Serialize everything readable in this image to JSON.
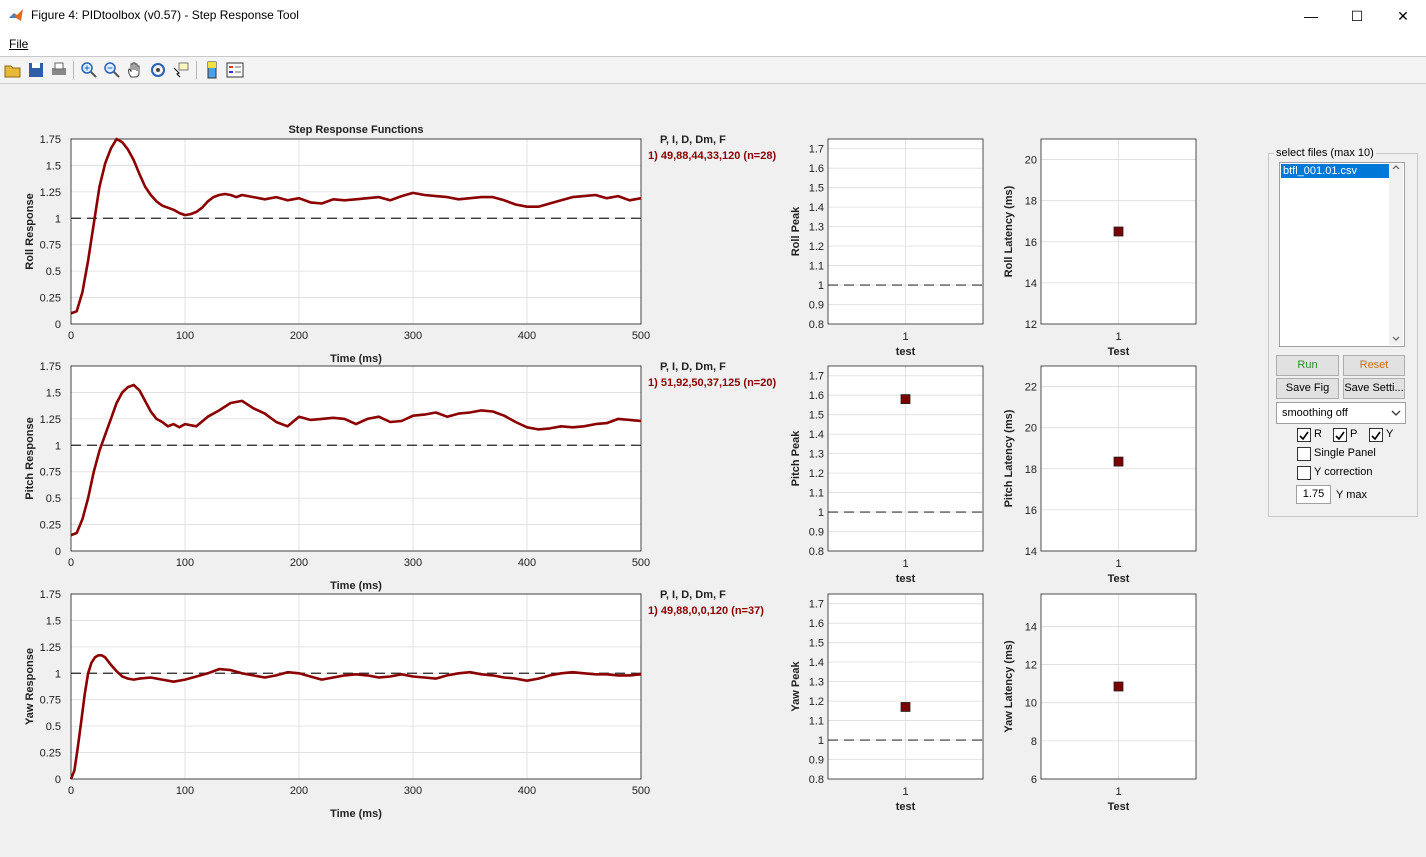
{
  "window": {
    "title": "Figure 4: PIDtoolbox (v0.57) - Step Response Tool",
    "minimize": "—",
    "maximize": "☐",
    "close": "✕"
  },
  "menu": {
    "file": "File"
  },
  "toolbar_icons": [
    "open-icon",
    "save-icon",
    "print-icon",
    "zoom-in-icon",
    "zoom-out-icon",
    "pan-icon",
    "rotate-icon",
    "data-cursor-icon",
    "colorbar-icon",
    "legend-icon"
  ],
  "chart_data": [
    {
      "type": "line",
      "title": "Step Response Functions",
      "xlabel": "Time (ms)",
      "ylabel": "Roll Response",
      "xlim": [
        0,
        500
      ],
      "ylim": [
        0,
        1.75
      ],
      "xticks": [
        0,
        100,
        200,
        300,
        400,
        500
      ],
      "yticks": [
        0,
        0.25,
        0.5,
        0.75,
        1,
        1.25,
        1.5,
        1.75
      ],
      "yticklabels": [
        "0",
        "0.25",
        "0.5",
        "0.75",
        "1",
        "1.25",
        "1.5",
        "1.75"
      ],
      "reference_line": 1,
      "grid": true,
      "color": "#8b0000",
      "x": [
        0,
        5,
        10,
        15,
        20,
        25,
        30,
        35,
        40,
        45,
        50,
        55,
        60,
        65,
        70,
        75,
        80,
        85,
        90,
        95,
        100,
        105,
        110,
        115,
        120,
        125,
        130,
        135,
        140,
        145,
        150,
        160,
        170,
        180,
        190,
        200,
        210,
        220,
        230,
        240,
        250,
        260,
        270,
        280,
        290,
        300,
        310,
        320,
        330,
        340,
        350,
        360,
        370,
        380,
        390,
        400,
        410,
        420,
        430,
        440,
        450,
        460,
        470,
        480,
        490,
        500
      ],
      "y": [
        0.1,
        0.12,
        0.3,
        0.6,
        0.95,
        1.3,
        1.52,
        1.66,
        1.75,
        1.72,
        1.65,
        1.55,
        1.42,
        1.3,
        1.22,
        1.16,
        1.12,
        1.1,
        1.08,
        1.05,
        1.03,
        1.04,
        1.06,
        1.1,
        1.16,
        1.2,
        1.22,
        1.23,
        1.22,
        1.2,
        1.22,
        1.2,
        1.18,
        1.2,
        1.17,
        1.19,
        1.15,
        1.14,
        1.18,
        1.17,
        1.18,
        1.19,
        1.2,
        1.17,
        1.21,
        1.24,
        1.22,
        1.21,
        1.2,
        1.18,
        1.19,
        1.2,
        1.2,
        1.17,
        1.13,
        1.11,
        1.11,
        1.14,
        1.17,
        1.2,
        1.21,
        1.22,
        1.19,
        1.21,
        1.17,
        1.19
      ],
      "params_header": "P, I, D, Dm, F",
      "params": "1) 49,88,44,33,120  (n=28)"
    },
    {
      "type": "line",
      "title": "",
      "xlabel": "Time (ms)",
      "ylabel": "Pitch Response",
      "xlim": [
        0,
        500
      ],
      "ylim": [
        0,
        1.75
      ],
      "xticks": [
        0,
        100,
        200,
        300,
        400,
        500
      ],
      "yticks": [
        0,
        0.25,
        0.5,
        0.75,
        1,
        1.25,
        1.5,
        1.75
      ],
      "yticklabels": [
        "0",
        "0.25",
        "0.5",
        "0.75",
        "1",
        "1.25",
        "1.5",
        "1.75"
      ],
      "reference_line": 1,
      "grid": true,
      "color": "#8b0000",
      "x": [
        0,
        5,
        10,
        15,
        20,
        25,
        30,
        35,
        40,
        45,
        50,
        55,
        60,
        65,
        70,
        75,
        80,
        85,
        90,
        95,
        100,
        110,
        120,
        130,
        140,
        150,
        160,
        170,
        180,
        190,
        200,
        210,
        220,
        230,
        240,
        250,
        260,
        270,
        280,
        290,
        300,
        310,
        320,
        330,
        340,
        350,
        360,
        370,
        380,
        390,
        400,
        410,
        420,
        430,
        440,
        450,
        460,
        470,
        480,
        490,
        500
      ],
      "y": [
        0.15,
        0.17,
        0.3,
        0.5,
        0.75,
        0.95,
        1.1,
        1.25,
        1.4,
        1.5,
        1.55,
        1.57,
        1.52,
        1.42,
        1.32,
        1.25,
        1.22,
        1.18,
        1.2,
        1.17,
        1.2,
        1.18,
        1.27,
        1.33,
        1.4,
        1.42,
        1.35,
        1.3,
        1.22,
        1.18,
        1.27,
        1.24,
        1.25,
        1.26,
        1.25,
        1.2,
        1.25,
        1.27,
        1.22,
        1.23,
        1.28,
        1.29,
        1.31,
        1.27,
        1.3,
        1.31,
        1.33,
        1.32,
        1.28,
        1.22,
        1.17,
        1.15,
        1.16,
        1.18,
        1.17,
        1.18,
        1.2,
        1.21,
        1.25,
        1.24,
        1.23
      ],
      "params_header": "P, I, D, Dm, F",
      "params": "1) 51,92,50,37,125  (n=20)"
    },
    {
      "type": "line",
      "title": "",
      "xlabel": "Time (ms)",
      "ylabel": "Yaw Response",
      "xlim": [
        0,
        500
      ],
      "ylim": [
        0,
        1.75
      ],
      "xticks": [
        0,
        100,
        200,
        300,
        400,
        500
      ],
      "yticks": [
        0,
        0.25,
        0.5,
        0.75,
        1,
        1.25,
        1.5,
        1.75
      ],
      "yticklabels": [
        "0",
        "0.25",
        "0.5",
        "0.75",
        "1",
        "1.25",
        "1.5",
        "1.75"
      ],
      "reference_line": 1,
      "grid": true,
      "color": "#8b0000",
      "x": [
        0,
        3,
        6,
        9,
        12,
        15,
        18,
        21,
        24,
        27,
        30,
        35,
        40,
        45,
        50,
        55,
        60,
        70,
        80,
        90,
        100,
        110,
        120,
        130,
        140,
        150,
        160,
        170,
        180,
        190,
        200,
        210,
        220,
        230,
        240,
        250,
        260,
        270,
        280,
        290,
        300,
        310,
        320,
        330,
        340,
        350,
        360,
        370,
        380,
        390,
        400,
        410,
        420,
        430,
        440,
        450,
        460,
        470,
        480,
        490,
        500
      ],
      "y": [
        0,
        0.08,
        0.3,
        0.55,
        0.8,
        1.0,
        1.1,
        1.15,
        1.17,
        1.17,
        1.15,
        1.08,
        1.02,
        0.97,
        0.95,
        0.94,
        0.95,
        0.96,
        0.94,
        0.92,
        0.94,
        0.97,
        1.0,
        1.04,
        1.03,
        1.0,
        0.98,
        0.96,
        0.98,
        1.01,
        1.0,
        0.97,
        0.94,
        0.96,
        0.98,
        0.99,
        0.98,
        0.96,
        0.97,
        0.99,
        0.97,
        0.96,
        0.95,
        0.98,
        1.0,
        1.01,
        0.99,
        0.98,
        0.96,
        0.95,
        0.93,
        0.95,
        0.98,
        1.0,
        1.01,
        1.0,
        0.99,
        0.99,
        0.98,
        0.98,
        0.99
      ],
      "params_header": "P, I, D, Dm, F",
      "params": "1) 49,88,0,0,120  (n=37)"
    },
    {
      "type": "scatter",
      "ylabel": "Roll Peak",
      "xlabel": "test",
      "xticklabels": [
        "1"
      ],
      "ylim": [
        0.8,
        1.75
      ],
      "yticks": [
        0.8,
        0.9,
        1,
        1.1,
        1.2,
        1.3,
        1.4,
        1.5,
        1.6,
        1.7
      ],
      "yticklabels": [
        "0.8",
        "0.9",
        "1",
        "1.1",
        "1.2",
        "1.3",
        "1.4",
        "1.5",
        "1.6",
        "1.7"
      ],
      "reference_line": 1,
      "points": []
    },
    {
      "type": "scatter",
      "ylabel": "Roll Latency (ms)",
      "xlabel": "Test",
      "xticklabels": [
        "1"
      ],
      "ylim": [
        12,
        21
      ],
      "yticks": [
        12,
        14,
        16,
        18,
        20
      ],
      "yticklabels": [
        "12",
        "14",
        "16",
        "18",
        "20"
      ],
      "points": [
        {
          "x": 1,
          "y": 16.5
        }
      ]
    },
    {
      "type": "scatter",
      "ylabel": "Pitch Peak",
      "xlabel": "test",
      "xticklabels": [
        "1"
      ],
      "ylim": [
        0.8,
        1.75
      ],
      "yticks": [
        0.8,
        0.9,
        1,
        1.1,
        1.2,
        1.3,
        1.4,
        1.5,
        1.6,
        1.7
      ],
      "yticklabels": [
        "0.8",
        "0.9",
        "1",
        "1.1",
        "1.2",
        "1.3",
        "1.4",
        "1.5",
        "1.6",
        "1.7"
      ],
      "reference_line": 1,
      "points": [
        {
          "x": 1,
          "y": 1.58
        }
      ]
    },
    {
      "type": "scatter",
      "ylabel": "Pitch Latency (ms)",
      "xlabel": "Test",
      "xticklabels": [
        "1"
      ],
      "ylim": [
        14,
        23
      ],
      "yticks": [
        14,
        16,
        18,
        20,
        22
      ],
      "yticklabels": [
        "14",
        "16",
        "18",
        "20",
        "22"
      ],
      "points": [
        {
          "x": 1,
          "y": 18.35
        }
      ]
    },
    {
      "type": "scatter",
      "ylabel": "Yaw Peak",
      "xlabel": "test",
      "xticklabels": [
        "1"
      ],
      "ylim": [
        0.8,
        1.75
      ],
      "yticks": [
        0.8,
        0.9,
        1,
        1.1,
        1.2,
        1.3,
        1.4,
        1.5,
        1.6,
        1.7
      ],
      "yticklabels": [
        "0.8",
        "0.9",
        "1",
        "1.1",
        "1.2",
        "1.3",
        "1.4",
        "1.5",
        "1.6",
        "1.7"
      ],
      "reference_line": 1,
      "points": [
        {
          "x": 1,
          "y": 1.17
        }
      ]
    },
    {
      "type": "scatter",
      "ylabel": "Yaw Latency (ms)",
      "xlabel": "Test",
      "xticklabels": [
        "1"
      ],
      "ylim": [
        6,
        15.7
      ],
      "yticks": [
        6,
        8,
        10,
        12,
        14
      ],
      "yticklabels": [
        "6",
        "8",
        "10",
        "12",
        "14"
      ],
      "points": [
        {
          "x": 1,
          "y": 10.85
        }
      ]
    }
  ],
  "controls": {
    "panel_title": "select files (max 10)",
    "files": [
      "btfl_001.01.csv"
    ],
    "run": "Run",
    "run_color": "#2e8b2e",
    "reset": "Reset",
    "reset_color": "#c8701a",
    "save_fig": "Save Fig",
    "save_settings": "Save Setti...",
    "smoothing": "smoothing off",
    "cb_r": "R",
    "cb_p": "P",
    "cb_y": "Y",
    "single_panel": "Single Panel",
    "y_correction": "Y correction",
    "ymax_value": "1.75",
    "ymax_label": "Y max"
  }
}
